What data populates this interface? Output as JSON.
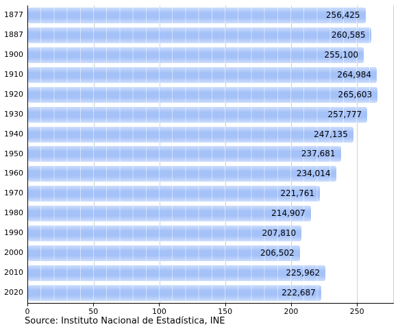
{
  "chart_data": {
    "type": "bar",
    "orientation": "horizontal",
    "title": "",
    "xlabel": "",
    "ylabel": "",
    "categories": [
      "1877",
      "1887",
      "1900",
      "1910",
      "1920",
      "1930",
      "1940",
      "1950",
      "1960",
      "1970",
      "1980",
      "1990",
      "2000",
      "2010",
      "2020"
    ],
    "values": [
      256425,
      260585,
      255100,
      264984,
      265603,
      257777,
      247135,
      237681,
      234014,
      221761,
      214907,
      207810,
      206502,
      225962,
      222687
    ],
    "value_labels": [
      "256,425",
      "260,585",
      "255,100",
      "264,984",
      "265,603",
      "257,777",
      "247,135",
      "237,681",
      "234,014",
      "221,761",
      "214,907",
      "207,810",
      "206,502",
      "225,962",
      "222,687"
    ],
    "x_ticks": [
      0,
      50,
      100,
      150,
      200,
      250
    ],
    "x_tick_labels": [
      "0",
      "50",
      "100",
      "150",
      "200",
      "250"
    ],
    "xlim": [
      0,
      278
    ],
    "axis_unit": "thousands",
    "grid": "vertical",
    "legend": "none",
    "bar_color": "#a4c1f8",
    "gridline_color": "#cfcfcf",
    "source": "Source: Instituto Nacional de Estadística, INE"
  }
}
